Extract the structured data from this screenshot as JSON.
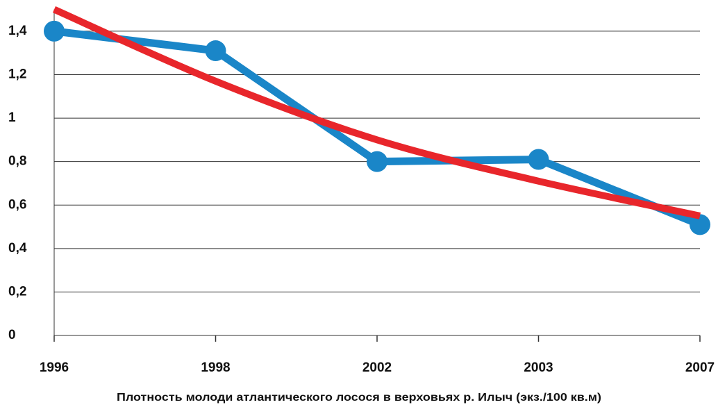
{
  "chart_data": {
    "type": "line",
    "x_label": "Плотность молоди атлантического лосося в верховьях р. Илыч (экз./100 кв.м)",
    "categories": [
      "1996",
      "1998",
      "2002",
      "2003",
      "2007"
    ],
    "series": [
      {
        "color": "#1a86c8",
        "values": [
          1.4,
          1.31,
          0.8,
          0.81,
          0.51
        ],
        "markers": true
      },
      {
        "color": "#e8262b",
        "values": [
          1.5,
          1.17,
          0.9,
          0.71,
          0.55
        ],
        "smooth": true
      }
    ],
    "ylim": [
      0,
      1.5
    ],
    "yticks": [
      0,
      {
        "value": 0.2,
        "label": "0,2"
      },
      {
        "value": 0.4,
        "label": "0,4"
      },
      {
        "value": 0.6,
        "label": "0,6"
      },
      {
        "value": 0.8,
        "label": "0,8"
      },
      1,
      {
        "value": 1.2,
        "label": "1,2"
      },
      {
        "value": 1.4,
        "label": "1,4"
      }
    ],
    "grid": true
  }
}
